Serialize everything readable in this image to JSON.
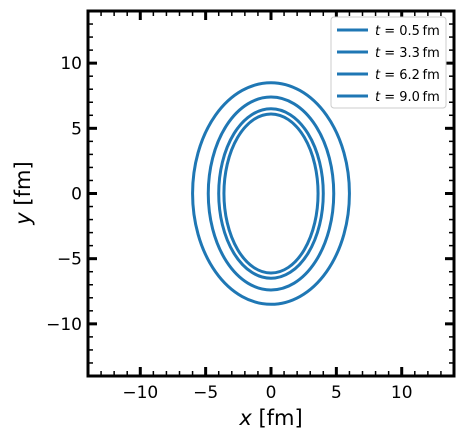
{
  "chart_data": {
    "type": "line",
    "title": "",
    "xlabel": {
      "var": "x",
      "unit": "[fm]"
    },
    "ylabel": {
      "var": "y",
      "unit": "[fm]"
    },
    "xlim": [
      -14,
      14
    ],
    "ylim": [
      -14,
      14
    ],
    "xticks": [
      -10,
      -5,
      0,
      5,
      10
    ],
    "yticks": [
      -10,
      -5,
      0,
      5,
      10
    ],
    "xtick_labels": [
      "−10",
      "−5",
      "0",
      "5",
      "10"
    ],
    "ytick_labels": [
      "−10",
      "−5",
      "0",
      "5",
      "10"
    ],
    "grid": false,
    "legend_position": "top-right",
    "line_color": "#1f77b4",
    "series": [
      {
        "name": "t = 0.5 fm",
        "label_var": "t",
        "label_value": "= 0.5 fm",
        "semi_x": 6.0,
        "semi_y": 8.5
      },
      {
        "name": "t = 3.3 fm",
        "label_var": "t",
        "label_value": "= 3.3 fm",
        "semi_x": 4.8,
        "semi_y": 7.4
      },
      {
        "name": "t = 6.2 fm",
        "label_var": "t",
        "label_value": "= 6.2 fm",
        "semi_x": 4.0,
        "semi_y": 6.5
      },
      {
        "name": "t = 9.0 fm",
        "label_var": "t",
        "label_value": "= 9.0 fm",
        "semi_x": 3.6,
        "semi_y": 6.1
      }
    ]
  }
}
